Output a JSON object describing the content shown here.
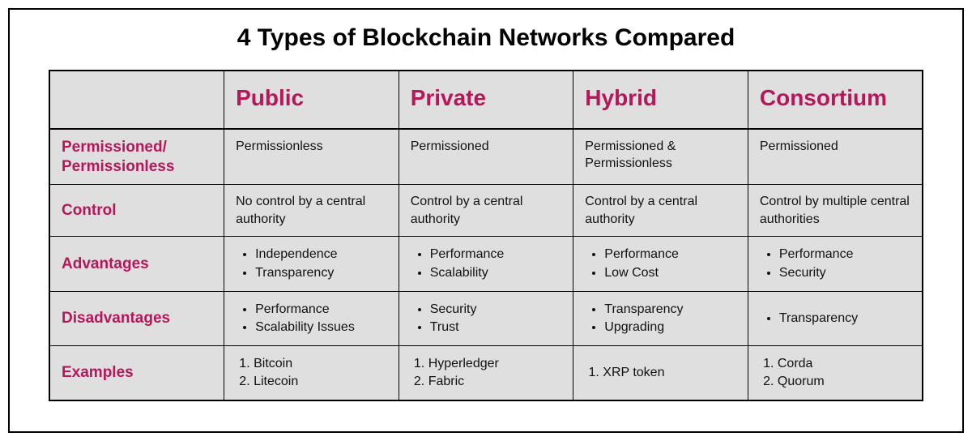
{
  "type": "table",
  "title": "4 Types of Blockchain Networks Compared",
  "colors": {
    "accent": "#b5175a",
    "cell_bg": "#e0dfe0",
    "border": "#000000",
    "text": "#111111",
    "page_bg": "#ffffff"
  },
  "typography": {
    "title_fontsize": 30,
    "title_weight": 800,
    "column_header_fontsize": 28,
    "column_header_weight": 800,
    "row_header_fontsize": 19,
    "row_header_weight": 700,
    "cell_fontsize": 16
  },
  "columns": [
    "Public",
    "Private",
    "Hybrid",
    "Consortium"
  ],
  "row_labels": [
    "Permissioned/ Permissionless",
    "Control",
    "Advantages",
    "Disadvantages",
    "Examples"
  ],
  "rows": {
    "permission": {
      "public": "Permissionless",
      "private": "Permissioned",
      "hybrid": "Permissioned & Permissionless",
      "consortium": "Permissioned"
    },
    "control": {
      "public": "No control by a central authority",
      "private": "Control by a central authority",
      "hybrid": "Control by a central authority",
      "consortium": "Control by multiple central authorities"
    },
    "advantages": {
      "public": [
        "Independence",
        "Transparency"
      ],
      "private": [
        "Performance",
        "Scalability"
      ],
      "hybrid": [
        "Performance",
        "Low Cost"
      ],
      "consortium": [
        "Performance",
        "Security"
      ]
    },
    "disadvantages": {
      "public": [
        "Performance",
        "Scalability Issues"
      ],
      "private": [
        "Security",
        "Trust"
      ],
      "hybrid": [
        "Transparency",
        "Upgrading"
      ],
      "consortium": [
        "Transparency"
      ]
    },
    "examples": {
      "public": [
        "Bitcoin",
        "Litecoin"
      ],
      "private": [
        "Hyperledger",
        "Fabric"
      ],
      "hybrid": [
        "XRP token"
      ],
      "consortium": [
        "Corda",
        "Quorum"
      ]
    }
  }
}
